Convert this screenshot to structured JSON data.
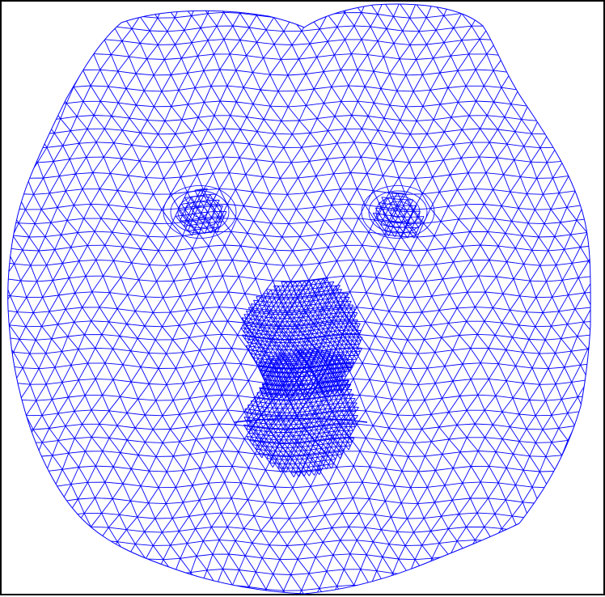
{
  "figure": {
    "subject": "face-mesh",
    "background_color": "#ffffff",
    "frame_color": "#000000",
    "mesh_color": "#0000ff",
    "dense_regions": [
      "left-eye",
      "right-eye",
      "nose",
      "mouth"
    ]
  }
}
